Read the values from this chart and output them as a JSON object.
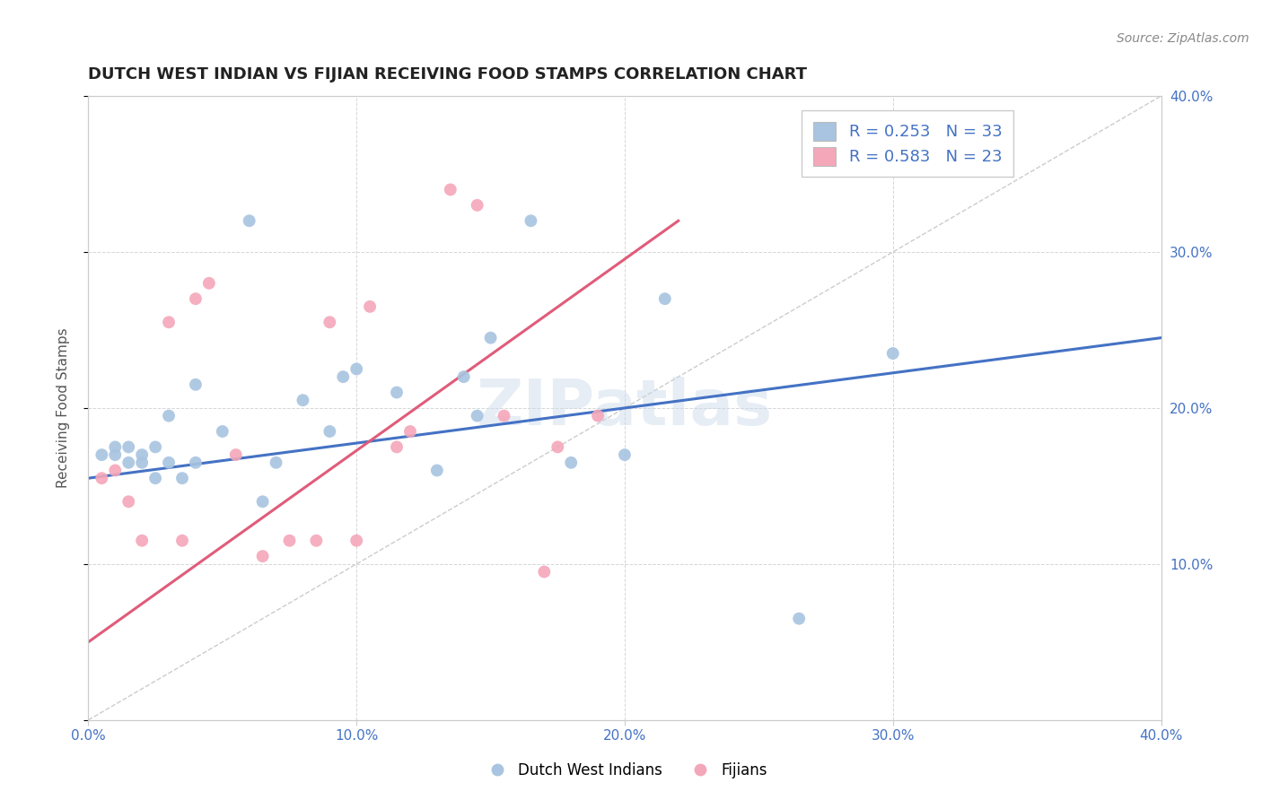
{
  "title": "DUTCH WEST INDIAN VS FIJIAN RECEIVING FOOD STAMPS CORRELATION CHART",
  "source": "Source: ZipAtlas.com",
  "ylabel": "Receiving Food Stamps",
  "xlim": [
    0.0,
    0.4
  ],
  "ylim": [
    0.0,
    0.4
  ],
  "xtick_labels": [
    "0.0%",
    "",
    "10.0%",
    "",
    "20.0%",
    "",
    "30.0%",
    "",
    "40.0%"
  ],
  "xtick_positions": [
    0.0,
    0.05,
    0.1,
    0.15,
    0.2,
    0.25,
    0.3,
    0.35,
    0.4
  ],
  "ytick_positions": [
    0.0,
    0.1,
    0.2,
    0.3,
    0.4
  ],
  "ytick_labels_right": [
    "",
    "10.0%",
    "20.0%",
    "30.0%",
    "40.0%"
  ],
  "blue_scatter_x": [
    0.005,
    0.01,
    0.01,
    0.015,
    0.015,
    0.02,
    0.02,
    0.025,
    0.025,
    0.03,
    0.03,
    0.035,
    0.04,
    0.04,
    0.05,
    0.06,
    0.065,
    0.07,
    0.08,
    0.09,
    0.095,
    0.1,
    0.115,
    0.13,
    0.14,
    0.145,
    0.15,
    0.165,
    0.18,
    0.2,
    0.215,
    0.265,
    0.3
  ],
  "blue_scatter_y": [
    0.17,
    0.17,
    0.175,
    0.165,
    0.175,
    0.165,
    0.17,
    0.155,
    0.175,
    0.165,
    0.195,
    0.155,
    0.165,
    0.215,
    0.185,
    0.32,
    0.14,
    0.165,
    0.205,
    0.185,
    0.22,
    0.225,
    0.21,
    0.16,
    0.22,
    0.195,
    0.245,
    0.32,
    0.165,
    0.17,
    0.27,
    0.065,
    0.235
  ],
  "pink_scatter_x": [
    0.005,
    0.01,
    0.015,
    0.02,
    0.03,
    0.035,
    0.04,
    0.045,
    0.055,
    0.065,
    0.075,
    0.085,
    0.09,
    0.1,
    0.105,
    0.115,
    0.12,
    0.135,
    0.145,
    0.155,
    0.17,
    0.175,
    0.19
  ],
  "pink_scatter_y": [
    0.155,
    0.16,
    0.14,
    0.115,
    0.255,
    0.115,
    0.27,
    0.28,
    0.17,
    0.105,
    0.115,
    0.115,
    0.255,
    0.115,
    0.265,
    0.175,
    0.185,
    0.34,
    0.33,
    0.195,
    0.095,
    0.175,
    0.195
  ],
  "blue_line_x": [
    0.0,
    0.4
  ],
  "blue_line_y": [
    0.155,
    0.245
  ],
  "pink_line_x": [
    0.0,
    0.22
  ],
  "pink_line_y": [
    0.05,
    0.32
  ],
  "diagonal_line_x": [
    0.0,
    0.4
  ],
  "diagonal_line_y": [
    0.0,
    0.4
  ],
  "blue_color": "#a8c4e0",
  "blue_line_color": "#4472c4",
  "pink_color": "#f4a7b9",
  "pink_line_color": "#e05c7a",
  "diagonal_color": "#cccccc",
  "watermark_text": "ZIPatlas",
  "legend_r_blue": "R = 0.253",
  "legend_n_blue": "N = 33",
  "legend_r_pink": "R = 0.583",
  "legend_n_pink": "N = 23",
  "legend_label_blue": "Dutch West Indians",
  "legend_label_pink": "Fijians",
  "title_color": "#222222",
  "axis_label_color": "#555555",
  "tick_color": "#4472c4",
  "background_color": "#ffffff",
  "grid_color": "#cccccc",
  "scatter_size": 100
}
